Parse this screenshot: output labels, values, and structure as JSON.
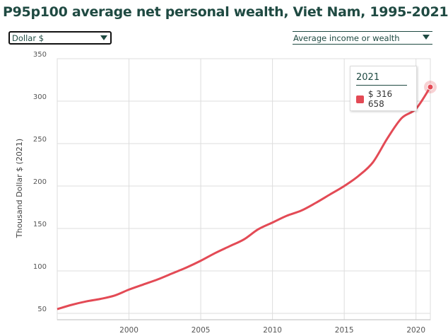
{
  "header": {
    "title": "P95p100 average net personal wealth, Viet Nam, 1995-2021"
  },
  "controls": {
    "currency": "Dollar $",
    "indicator": "Average income or wealth"
  },
  "tooltip": {
    "year": "2021",
    "value": "$ 316 658"
  },
  "chart_data": {
    "type": "line",
    "title": "P95p100 average net personal wealth, Viet Nam, 1995-2021",
    "xlabel": "",
    "ylabel": "Thousand Dollar $ (2021)",
    "xlim": [
      1995,
      2021
    ],
    "ylim": [
      50,
      350
    ],
    "x_ticks": [
      "2000",
      "2005",
      "2010",
      "2015",
      "2020"
    ],
    "y_ticks": [
      "50",
      "100",
      "150",
      "200",
      "250",
      "300",
      "350"
    ],
    "color": "#e34a55",
    "series": [
      {
        "name": "P95p100",
        "x": [
          1995,
          1996,
          1997,
          1998,
          1999,
          2000,
          2001,
          2002,
          2003,
          2004,
          2005,
          2006,
          2007,
          2008,
          2009,
          2010,
          2011,
          2012,
          2013,
          2014,
          2015,
          2016,
          2017,
          2018,
          2019,
          2020,
          2021
        ],
        "values": [
          55,
          60,
          64,
          67,
          71,
          78,
          84,
          90,
          97,
          104,
          112,
          121,
          129,
          137,
          149,
          157,
          165,
          171,
          180,
          190,
          200,
          212,
          228,
          256,
          280,
          291,
          316.658
        ]
      }
    ]
  }
}
